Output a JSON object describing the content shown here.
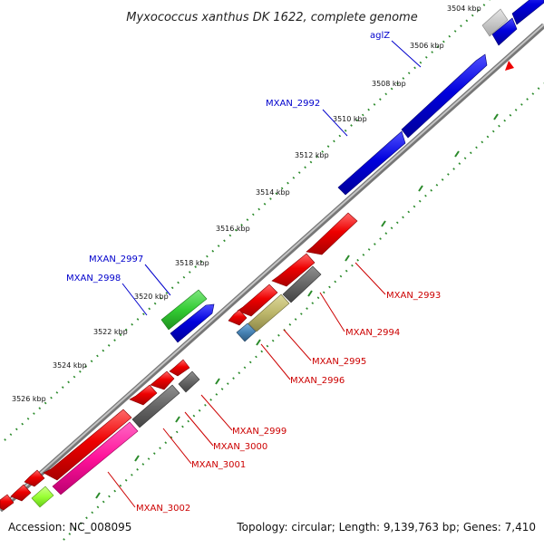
{
  "title": "Myxococcus xanthus DK 1622, complete genome",
  "footer": {
    "accession": "Accession: NC_008095",
    "summary": "Topology: circular; Length: 9,139,763 bp; Genes: 7,410"
  },
  "kbp_ticks": [
    "3504 kbp",
    "3506 kbp",
    "3508 kbp",
    "3510 kbp",
    "3512 kbp",
    "3514 kbp",
    "3516 kbp",
    "3518 kbp",
    "3520 kbp",
    "3522 kbp",
    "3524 kbp",
    "3526 kbp"
  ],
  "forward_labels": [
    "aglZ",
    "MXAN_2992",
    "MXAN_2997",
    "MXAN_2998"
  ],
  "reverse_labels": [
    "MXAN_2993",
    "MXAN_2994",
    "MXAN_2995",
    "MXAN_2996",
    "MXAN_2999",
    "MXAN_3000",
    "MXAN_3001",
    "MXAN_3002"
  ],
  "colors": {
    "forward_gene": "#0000dd",
    "reverse_gene": "#ee0000",
    "gray_gene": "#666666",
    "light_gray_gene": "#c8c8c8",
    "green_gene": "#33cc33",
    "lime_gene": "#99ff33",
    "magenta_gene": "#ff1199",
    "khaki_gene": "#bdb76b",
    "steelblue_gene": "#4682b4",
    "tick_dots": "#2a8a2a",
    "backbone": "#999999"
  }
}
